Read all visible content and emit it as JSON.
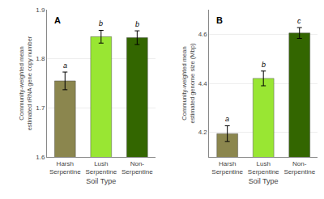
{
  "chart_data": [
    {
      "type": "bar",
      "title": "A",
      "categories": [
        "Harsh\nSerpentine",
        "Lush\nSerpentine",
        "Non-\nSerpentine"
      ],
      "values": [
        1.755,
        1.845,
        1.843
      ],
      "errors": [
        0.018,
        0.013,
        0.014
      ],
      "annotations": [
        "a",
        "b",
        "b"
      ],
      "colors": [
        "#8B864E",
        "#99E633",
        "#336600"
      ],
      "ylabel": "Community-weighted mean\nestimated rRNA gene copy number",
      "xlabel": "Soil Type",
      "ylim": [
        1.6,
        1.9
      ],
      "yticks": [
        1.6,
        1.7,
        1.8,
        1.9
      ],
      "grid": true
    },
    {
      "type": "bar",
      "title": "B",
      "categories": [
        "Harsh\nSerpentine",
        "Lush\nSerpentine",
        "Non-\nSerpentine"
      ],
      "values": [
        4.195,
        4.42,
        4.605
      ],
      "errors": [
        0.032,
        0.03,
        0.022
      ],
      "annotations": [
        "a",
        "b",
        "c"
      ],
      "colors": [
        "#8B864E",
        "#99E633",
        "#336600"
      ],
      "ylabel": "Community-weighted mean\nestimated genome size (Mbp)",
      "xlabel": "Soil Type",
      "ylim": [
        4.1,
        4.7
      ],
      "yticks": [
        4.2,
        4.4,
        4.6
      ],
      "grid": true
    }
  ]
}
